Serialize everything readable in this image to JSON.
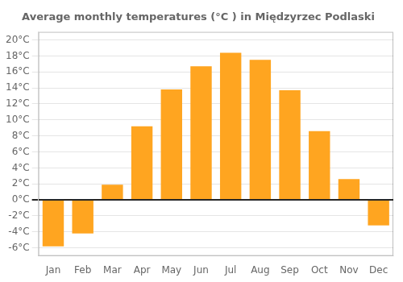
{
  "chart_data": {
    "type": "bar",
    "title": "Average monthly temperatures (°C ) in Międzyrzec Podlaski",
    "categories": [
      "Jan",
      "Feb",
      "Mar",
      "Apr",
      "May",
      "Jun",
      "Jul",
      "Aug",
      "Sep",
      "Oct",
      "Nov",
      "Dec"
    ],
    "values": [
      -5.8,
      -4.2,
      1.9,
      9.2,
      13.8,
      16.7,
      18.4,
      17.5,
      13.7,
      8.6,
      2.6,
      -3.2
    ],
    "color": "#FFA520",
    "ylim": [
      -7,
      21
    ],
    "yticks": [
      {
        "value": -6,
        "label": "-6°C"
      },
      {
        "value": -4,
        "label": "-4°C"
      },
      {
        "value": -2,
        "label": "-2°C"
      },
      {
        "value": 0,
        "label": "0°C"
      },
      {
        "value": 2,
        "label": "2°C"
      },
      {
        "value": 4,
        "label": "4°C"
      },
      {
        "value": 6,
        "label": "6°C"
      },
      {
        "value": 8,
        "label": "8°C"
      },
      {
        "value": 10,
        "label": "10°C"
      },
      {
        "value": 12,
        "label": "12°C"
      },
      {
        "value": 14,
        "label": "14°C"
      },
      {
        "value": 16,
        "label": "16°C"
      },
      {
        "value": 18,
        "label": "18°C"
      },
      {
        "value": 20,
        "label": "20°C"
      }
    ],
    "grid": true
  }
}
